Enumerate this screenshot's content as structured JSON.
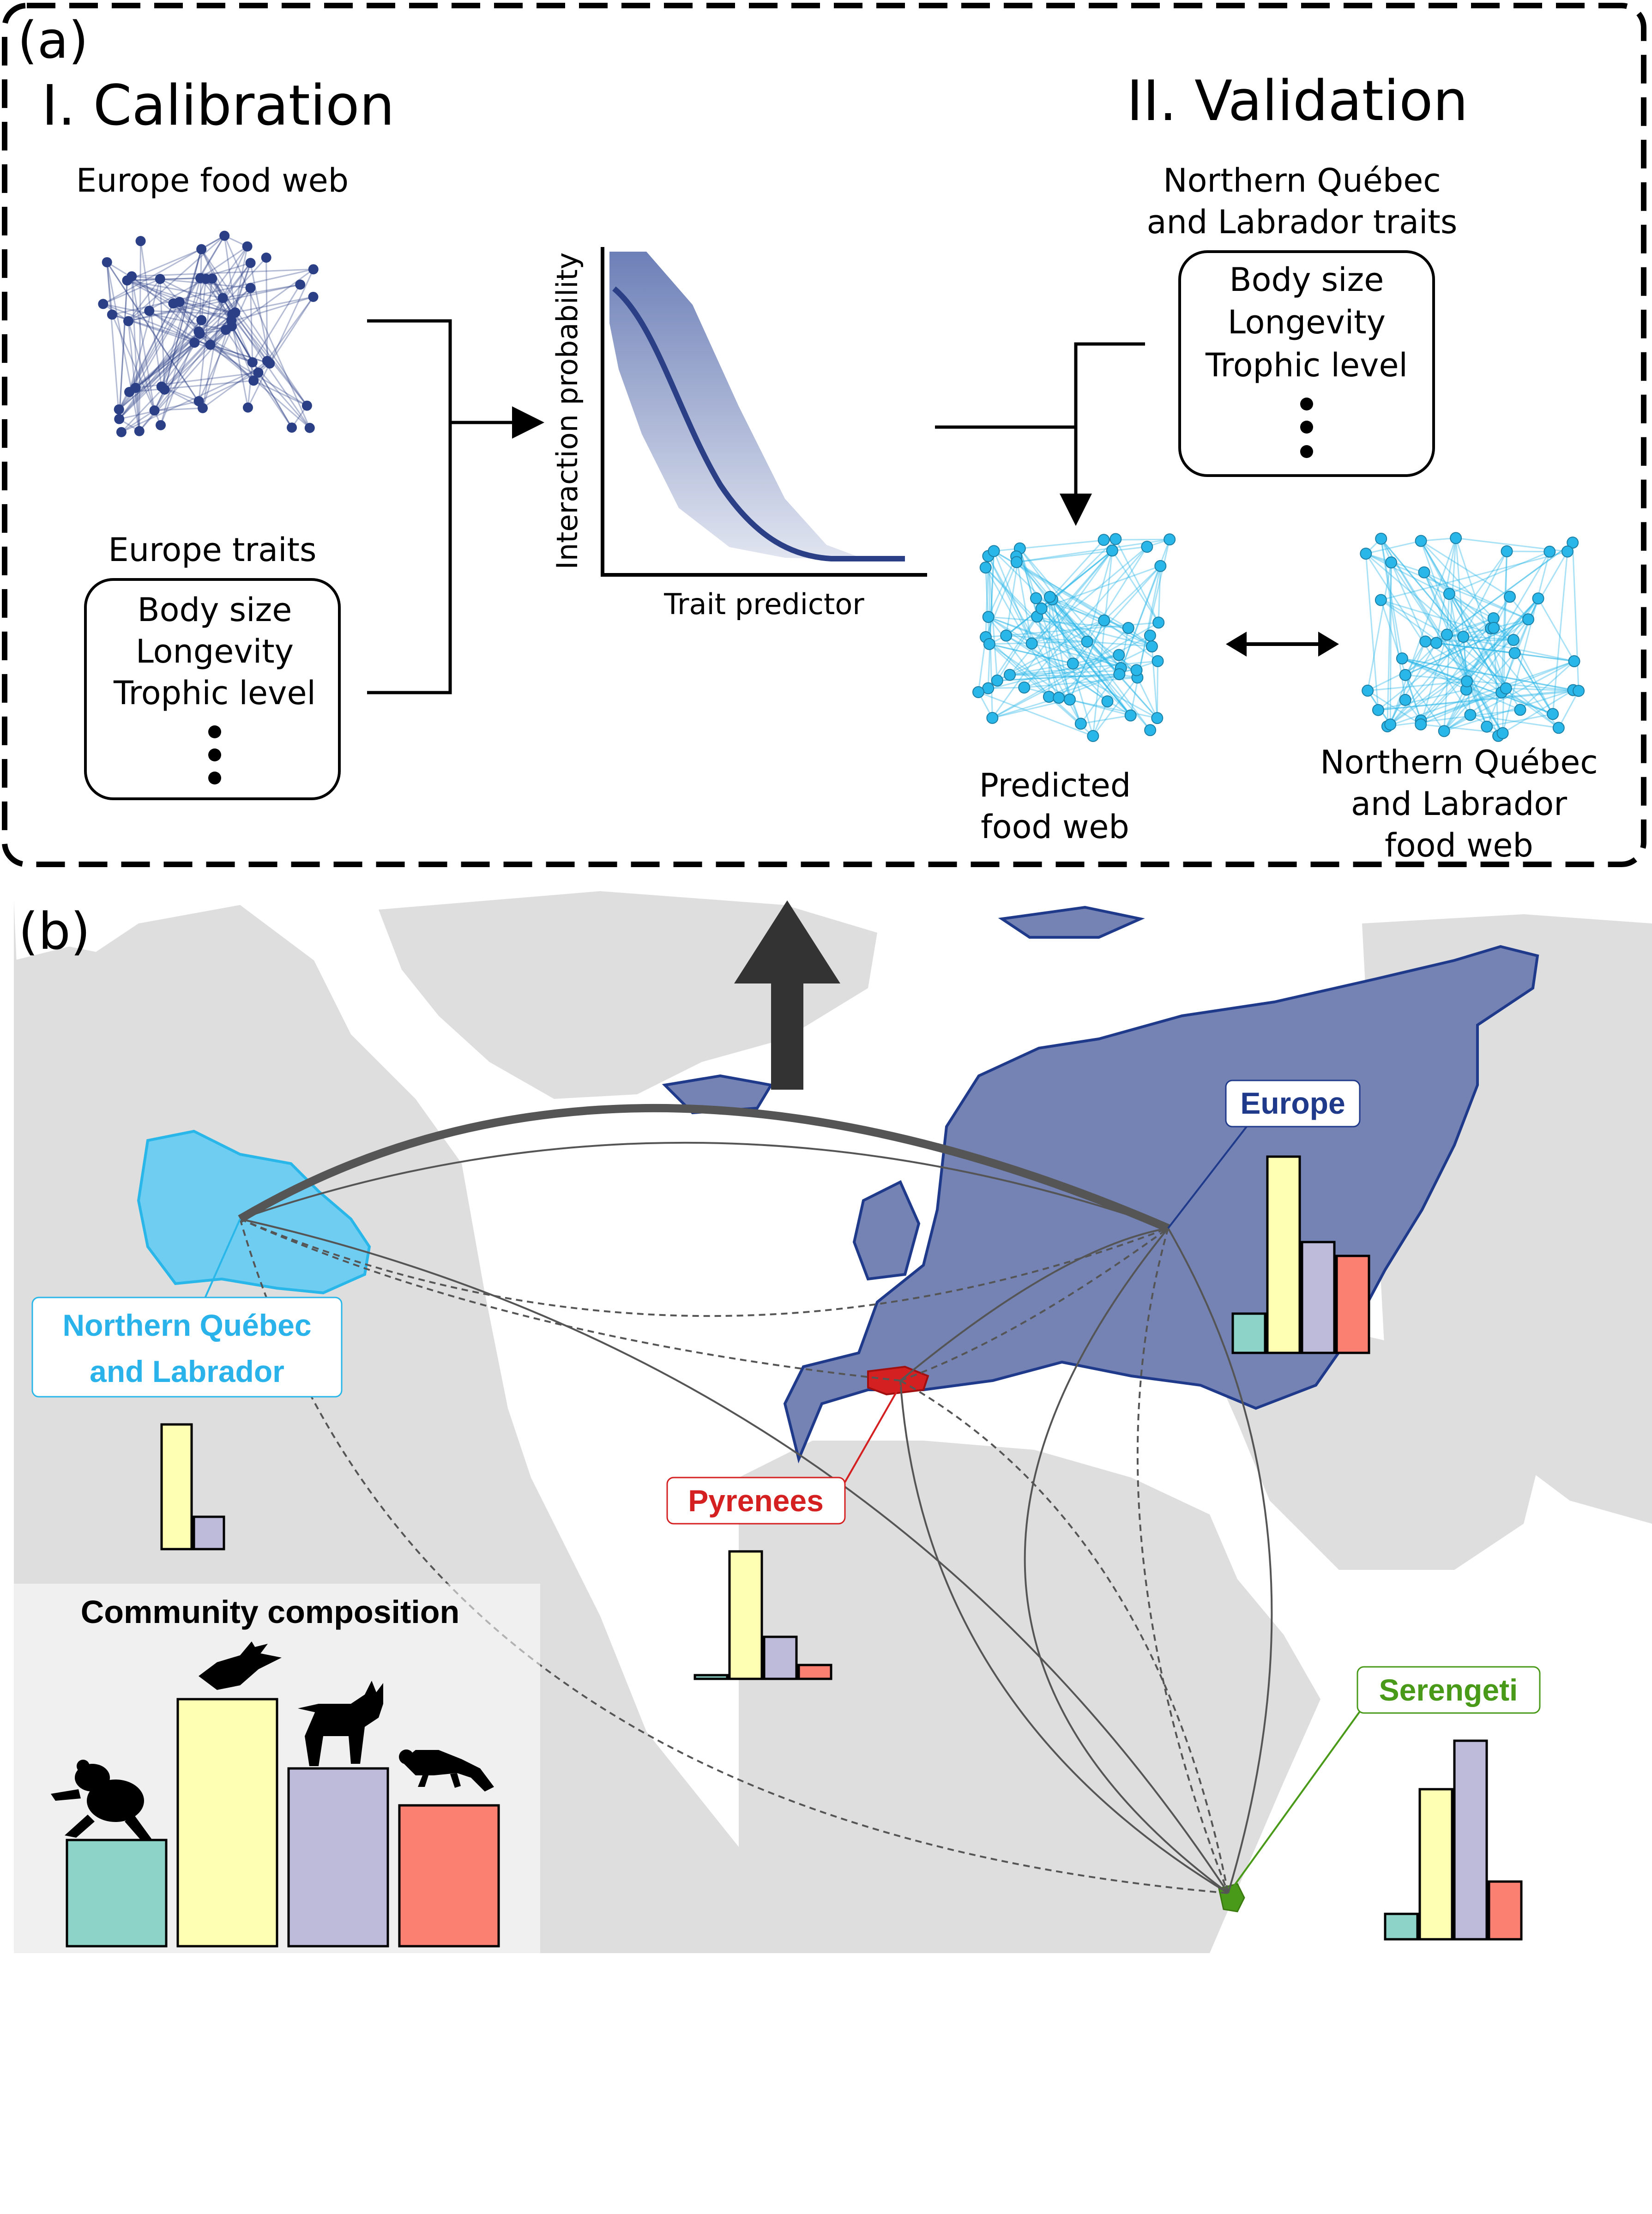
{
  "panel_a": {
    "label": "(a)",
    "calibration_title": "I. Calibration",
    "validation_title": "II. Validation",
    "europe_food_web_label": "Europe food web",
    "europe_traits_label": "Europe traits",
    "traits": [
      "Body size",
      "Longevity",
      "Trophic level"
    ],
    "nq_traits_label_line1": "Northern Québec",
    "nq_traits_label_line2": "and Labrador traits",
    "plot_ylabel": "Interaction probability",
    "plot_xlabel": "Trait predictor",
    "predicted_label_line1": "Predicted",
    "predicted_label_line2": "food web",
    "nq_web_label_line1": "Northern Québec",
    "nq_web_label_line2": "and Labrador",
    "nq_web_label_line3": "food web"
  },
  "panel_b": {
    "label": "(b)",
    "regions": {
      "europe": "Europe",
      "nq_line1": "Northern Québec",
      "nq_line2": "and Labrador",
      "pyrenees": "Pyrenees",
      "serengeti": "Serengeti"
    },
    "community_composition_title": "Community composition"
  },
  "colors": {
    "europe": "#7483b4",
    "europe_dark": "#1f3a8a",
    "web_dark": "#2b3f86",
    "web_light": "#29b6e8",
    "quebec_fill": "#6fcdf2",
    "quebec_text": "#2ab3ea",
    "pyrenees": "#d42020",
    "serengeti": "#4a9a1a",
    "land": "#dedede",
    "amphibians": "#8dd3c7",
    "birds": "#ffffb3",
    "mammals": "#bebada",
    "reptiles": "#fb8072"
  },
  "icons": [
    "frog-icon",
    "bird-icon",
    "lynx-icon",
    "lizard-icon"
  ]
}
